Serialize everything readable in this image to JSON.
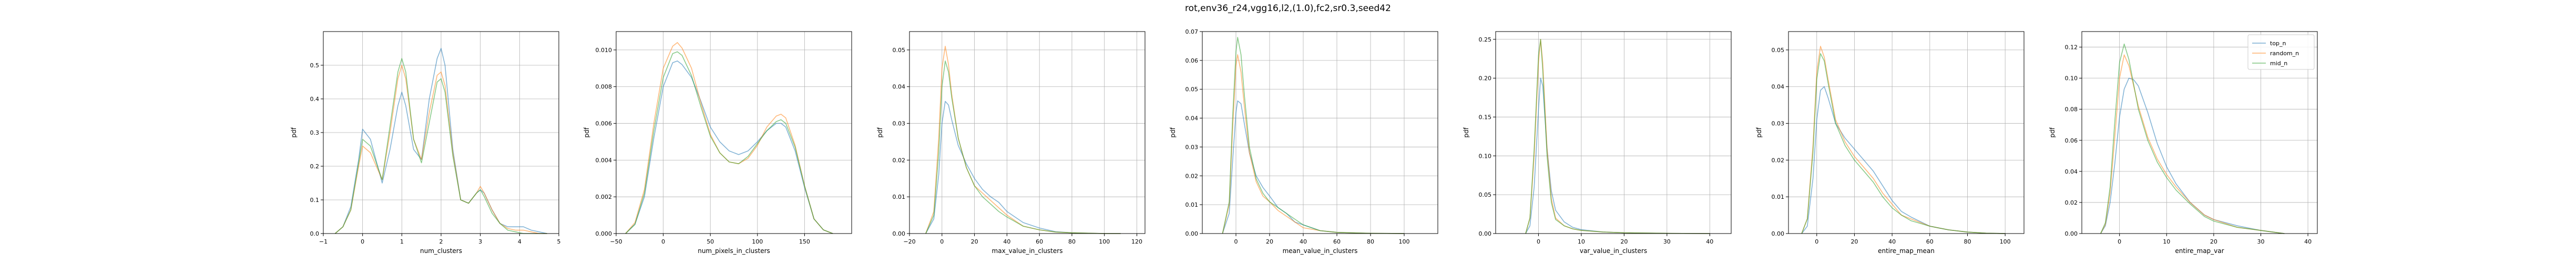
{
  "figure": {
    "suptitle": "rot,env36_r24,vgg16,l2,(1.0),fc2,sr0.3,seed42"
  },
  "colors": {
    "top_n": "#1f77b4",
    "random_n": "#ff7f0e",
    "mid_n": "#2ca02c"
  },
  "legend": {
    "entries": [
      "top_n",
      "random_n",
      "mid_n"
    ],
    "placement": "top-right of last panel"
  },
  "chart_data": [
    {
      "type": "line",
      "xlabel": "num_clusters",
      "ylabel": "pdf",
      "xlim": [
        -1,
        5
      ],
      "ylim": [
        0,
        0.6
      ],
      "xticks": [
        -1,
        0,
        1,
        2,
        3,
        4,
        5
      ],
      "yticks": [
        0.0,
        0.1,
        0.2,
        0.3,
        0.4,
        0.5
      ],
      "ytick_labels": [
        "0.0",
        "0.1",
        "0.2",
        "0.3",
        "0.4",
        "0.5"
      ],
      "x": [
        -0.7,
        -0.5,
        -0.3,
        -0.1,
        0.0,
        0.2,
        0.5,
        0.7,
        0.9,
        1.0,
        1.1,
        1.3,
        1.5,
        1.7,
        1.9,
        2.0,
        2.1,
        2.3,
        2.5,
        2.7,
        2.9,
        3.0,
        3.1,
        3.3,
        3.5,
        3.7,
        3.9,
        4.1,
        4.3,
        4.5,
        4.7
      ],
      "series": [
        {
          "name": "top_n",
          "values": [
            0.0,
            0.02,
            0.08,
            0.22,
            0.31,
            0.28,
            0.15,
            0.25,
            0.38,
            0.42,
            0.38,
            0.25,
            0.22,
            0.4,
            0.52,
            0.55,
            0.5,
            0.25,
            0.1,
            0.09,
            0.12,
            0.13,
            0.12,
            0.07,
            0.03,
            0.02,
            0.02,
            0.02,
            0.01,
            0.005,
            0.0
          ]
        },
        {
          "name": "random_n",
          "values": [
            0.0,
            0.02,
            0.07,
            0.2,
            0.26,
            0.24,
            0.16,
            0.3,
            0.46,
            0.5,
            0.46,
            0.28,
            0.22,
            0.36,
            0.47,
            0.48,
            0.44,
            0.24,
            0.1,
            0.09,
            0.12,
            0.14,
            0.12,
            0.07,
            0.03,
            0.015,
            0.01,
            0.01,
            0.005,
            0.0,
            0.0
          ]
        },
        {
          "name": "mid_n",
          "values": [
            0.0,
            0.02,
            0.07,
            0.21,
            0.28,
            0.26,
            0.16,
            0.32,
            0.48,
            0.52,
            0.48,
            0.28,
            0.21,
            0.33,
            0.45,
            0.46,
            0.42,
            0.23,
            0.1,
            0.09,
            0.12,
            0.13,
            0.11,
            0.06,
            0.03,
            0.01,
            0.005,
            0.0,
            0.0,
            0.0,
            0.0
          ]
        }
      ]
    },
    {
      "type": "line",
      "xlabel": "num_pixels_in_clusters",
      "ylabel": "pdf",
      "xlim": [
        -50,
        200
      ],
      "ylim": [
        0,
        0.011
      ],
      "xticks": [
        -50,
        0,
        50,
        100,
        150
      ],
      "yticks": [
        0.0,
        0.002,
        0.004,
        0.006,
        0.008,
        0.01
      ],
      "ytick_labels": [
        "0.000",
        "0.002",
        "0.004",
        "0.006",
        "0.008",
        "0.010"
      ],
      "x": [
        -40,
        -30,
        -20,
        -10,
        0,
        10,
        15,
        20,
        30,
        40,
        50,
        60,
        70,
        80,
        90,
        100,
        110,
        120,
        125,
        130,
        140,
        150,
        160,
        170,
        180
      ],
      "series": [
        {
          "name": "top_n",
          "values": [
            0.0,
            0.0005,
            0.002,
            0.0052,
            0.008,
            0.0093,
            0.0094,
            0.0092,
            0.0085,
            0.0072,
            0.0058,
            0.005,
            0.0045,
            0.0043,
            0.0045,
            0.005,
            0.0056,
            0.006,
            0.006,
            0.0058,
            0.0045,
            0.0025,
            0.0008,
            0.0002,
            0.0
          ]
        },
        {
          "name": "random_n",
          "values": [
            0.0,
            0.0006,
            0.0024,
            0.006,
            0.009,
            0.0102,
            0.0104,
            0.0101,
            0.009,
            0.0071,
            0.0054,
            0.0044,
            0.0039,
            0.0038,
            0.0041,
            0.0048,
            0.0058,
            0.0064,
            0.0065,
            0.0063,
            0.0048,
            0.0026,
            0.0008,
            0.0002,
            0.0
          ]
        },
        {
          "name": "mid_n",
          "values": [
            0.0,
            0.0005,
            0.0022,
            0.0056,
            0.0085,
            0.0098,
            0.0099,
            0.0097,
            0.0086,
            0.0069,
            0.0053,
            0.0044,
            0.0039,
            0.0038,
            0.0042,
            0.0049,
            0.0056,
            0.0061,
            0.0062,
            0.006,
            0.0047,
            0.0026,
            0.0008,
            0.0002,
            0.0
          ]
        }
      ]
    },
    {
      "type": "line",
      "xlabel": "max_value_in_clusters",
      "ylabel": "pdf",
      "xlim": [
        -20,
        125
      ],
      "ylim": [
        0,
        0.055
      ],
      "xticks": [
        -20,
        0,
        20,
        40,
        60,
        80,
        100,
        120
      ],
      "yticks": [
        0.0,
        0.01,
        0.02,
        0.03,
        0.04,
        0.05
      ],
      "ytick_labels": [
        "0.00",
        "0.01",
        "0.02",
        "0.03",
        "0.04",
        "0.05"
      ],
      "x": [
        -10,
        -5,
        -2,
        0,
        2,
        4,
        6,
        10,
        15,
        20,
        25,
        30,
        35,
        40,
        50,
        60,
        70,
        80,
        90,
        100,
        110
      ],
      "series": [
        {
          "name": "top_n",
          "values": [
            0.0,
            0.004,
            0.016,
            0.03,
            0.036,
            0.035,
            0.031,
            0.024,
            0.019,
            0.015,
            0.012,
            0.01,
            0.0085,
            0.006,
            0.003,
            0.0015,
            0.0005,
            0.0002,
            0.0001,
            0.0,
            0.0
          ]
        },
        {
          "name": "random_n",
          "values": [
            0.0,
            0.006,
            0.026,
            0.045,
            0.051,
            0.046,
            0.038,
            0.026,
            0.018,
            0.013,
            0.011,
            0.009,
            0.007,
            0.005,
            0.002,
            0.001,
            0.0004,
            0.0002,
            0.0001,
            0.0,
            0.0
          ]
        },
        {
          "name": "mid_n",
          "values": [
            0.0,
            0.005,
            0.022,
            0.04,
            0.047,
            0.044,
            0.037,
            0.026,
            0.018,
            0.013,
            0.01,
            0.008,
            0.006,
            0.0045,
            0.002,
            0.001,
            0.0004,
            0.0002,
            0.0001,
            0.0,
            0.0
          ]
        }
      ]
    },
    {
      "type": "line",
      "xlabel": "mean_value_in_clusters",
      "ylabel": "pdf",
      "xlim": [
        -20,
        120
      ],
      "ylim": [
        0,
        0.07
      ],
      "xticks": [
        0,
        20,
        40,
        60,
        80,
        100
      ],
      "yticks": [
        0.0,
        0.01,
        0.02,
        0.03,
        0.04,
        0.05,
        0.06,
        0.07
      ],
      "ytick_labels": [
        "0.00",
        "0.01",
        "0.02",
        "0.03",
        "0.04",
        "0.05",
        "0.06",
        "0.07"
      ],
      "x": [
        -8,
        -4,
        -2,
        0,
        1,
        3,
        5,
        8,
        12,
        16,
        20,
        25,
        30,
        35,
        40,
        50,
        60,
        80,
        100
      ],
      "series": [
        {
          "name": "top_n",
          "values": [
            0.0,
            0.007,
            0.025,
            0.042,
            0.046,
            0.045,
            0.038,
            0.028,
            0.02,
            0.016,
            0.013,
            0.009,
            0.007,
            0.004,
            0.003,
            0.001,
            0.0004,
            0.0001,
            0.0
          ]
        },
        {
          "name": "random_n",
          "values": [
            0.0,
            0.01,
            0.036,
            0.058,
            0.062,
            0.056,
            0.044,
            0.028,
            0.018,
            0.013,
            0.011,
            0.008,
            0.006,
            0.004,
            0.002,
            0.001,
            0.0004,
            0.0001,
            0.0
          ]
        },
        {
          "name": "mid_n",
          "values": [
            0.0,
            0.011,
            0.04,
            0.063,
            0.068,
            0.062,
            0.048,
            0.03,
            0.019,
            0.014,
            0.011,
            0.009,
            0.007,
            0.005,
            0.003,
            0.001,
            0.0004,
            0.0001,
            0.0
          ]
        }
      ]
    },
    {
      "type": "line",
      "xlabel": "var_value_in_clusters",
      "ylabel": "pdf",
      "xlim": [
        -10,
        45
      ],
      "ylim": [
        0,
        0.26
      ],
      "xticks": [
        0,
        10,
        20,
        30,
        40
      ],
      "yticks": [
        0.0,
        0.05,
        0.1,
        0.15,
        0.2,
        0.25
      ],
      "ytick_labels": [
        "0.00",
        "0.05",
        "0.10",
        "0.15",
        "0.20",
        "0.25"
      ],
      "x": [
        -3,
        -2,
        -1,
        0,
        0.5,
        1,
        2,
        3,
        4,
        6,
        8,
        10,
        15,
        20,
        30,
        40
      ],
      "series": [
        {
          "name": "top_n",
          "values": [
            0.0,
            0.01,
            0.06,
            0.16,
            0.2,
            0.19,
            0.11,
            0.055,
            0.03,
            0.015,
            0.008,
            0.005,
            0.002,
            0.001,
            0.0003,
            0.0
          ]
        },
        {
          "name": "random_n",
          "values": [
            0.0,
            0.02,
            0.1,
            0.22,
            0.25,
            0.22,
            0.11,
            0.045,
            0.02,
            0.01,
            0.006,
            0.004,
            0.002,
            0.001,
            0.0003,
            0.0
          ]
        },
        {
          "name": "mid_n",
          "values": [
            0.0,
            0.02,
            0.11,
            0.23,
            0.25,
            0.21,
            0.1,
            0.04,
            0.018,
            0.01,
            0.006,
            0.004,
            0.002,
            0.001,
            0.0003,
            0.0
          ]
        }
      ]
    },
    {
      "type": "line",
      "xlabel": "entire_map_mean",
      "ylabel": "pdf",
      "xlim": [
        -15,
        110
      ],
      "ylim": [
        0,
        0.055
      ],
      "xticks": [
        0,
        20,
        40,
        60,
        80,
        100
      ],
      "yticks": [
        0.0,
        0.01,
        0.02,
        0.03,
        0.04,
        0.05
      ],
      "ytick_labels": [
        "0.00",
        "0.01",
        "0.02",
        "0.03",
        "0.04",
        "0.05"
      ],
      "x": [
        -8,
        -5,
        -2,
        0,
        2,
        4,
        6,
        10,
        15,
        20,
        25,
        30,
        35,
        40,
        45,
        50,
        60,
        70,
        80,
        90,
        100
      ],
      "series": [
        {
          "name": "top_n",
          "values": [
            0.0,
            0.002,
            0.015,
            0.031,
            0.039,
            0.04,
            0.037,
            0.03,
            0.026,
            0.023,
            0.02,
            0.017,
            0.013,
            0.009,
            0.006,
            0.0045,
            0.002,
            0.001,
            0.0004,
            0.0001,
            0.0
          ]
        },
        {
          "name": "random_n",
          "values": [
            0.0,
            0.004,
            0.024,
            0.044,
            0.051,
            0.048,
            0.042,
            0.031,
            0.025,
            0.021,
            0.018,
            0.015,
            0.011,
            0.008,
            0.005,
            0.004,
            0.002,
            0.001,
            0.0004,
            0.0001,
            0.0
          ]
        },
        {
          "name": "mid_n",
          "values": [
            0.0,
            0.004,
            0.022,
            0.042,
            0.049,
            0.047,
            0.041,
            0.03,
            0.024,
            0.02,
            0.017,
            0.014,
            0.01,
            0.007,
            0.005,
            0.0035,
            0.002,
            0.001,
            0.0004,
            0.0001,
            0.0
          ]
        }
      ]
    },
    {
      "type": "line",
      "xlabel": "entire_map_var",
      "ylabel": "pdf",
      "xlim": [
        -8,
        42
      ],
      "ylim": [
        0,
        0.13
      ],
      "xticks": [
        0,
        10,
        20,
        30,
        40
      ],
      "yticks": [
        0.0,
        0.02,
        0.04,
        0.06,
        0.08,
        0.1,
        0.12
      ],
      "ytick_labels": [
        "0.00",
        "0.02",
        "0.04",
        "0.06",
        "0.08",
        "0.10",
        "0.12"
      ],
      "x": [
        -4,
        -3,
        -2,
        -1,
        0,
        1,
        2,
        3,
        4,
        6,
        8,
        10,
        12,
        15,
        18,
        20,
        25,
        30,
        35
      ],
      "series": [
        {
          "name": "top_n",
          "values": [
            0.0,
            0.005,
            0.02,
            0.045,
            0.075,
            0.093,
            0.1,
            0.099,
            0.095,
            0.078,
            0.058,
            0.043,
            0.032,
            0.02,
            0.012,
            0.009,
            0.005,
            0.002,
            0.0
          ]
        },
        {
          "name": "random_n",
          "values": [
            0.0,
            0.006,
            0.026,
            0.062,
            0.1,
            0.115,
            0.108,
            0.095,
            0.082,
            0.062,
            0.048,
            0.038,
            0.03,
            0.02,
            0.012,
            0.009,
            0.004,
            0.002,
            0.0
          ]
        },
        {
          "name": "mid_n",
          "values": [
            0.0,
            0.007,
            0.03,
            0.072,
            0.11,
            0.122,
            0.112,
            0.096,
            0.08,
            0.06,
            0.046,
            0.036,
            0.028,
            0.019,
            0.011,
            0.008,
            0.004,
            0.002,
            0.0
          ]
        }
      ]
    }
  ]
}
